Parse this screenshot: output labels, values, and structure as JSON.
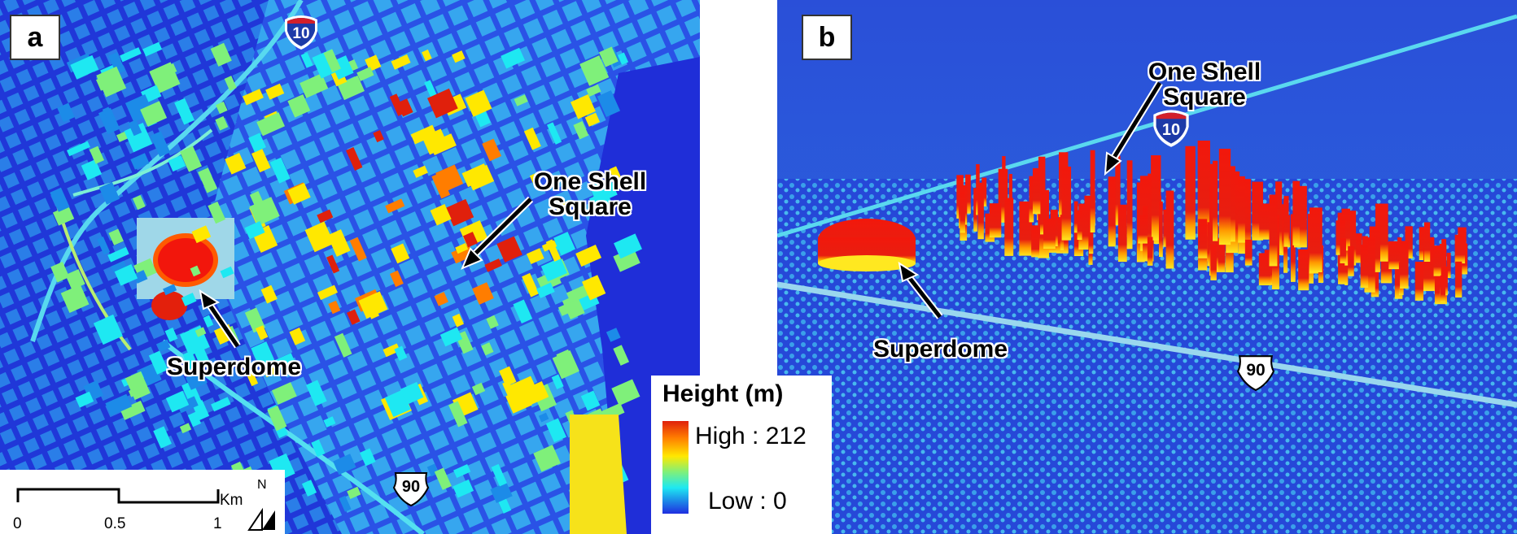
{
  "panel_a": {
    "label": "a",
    "interstate": "10",
    "us_route": "90",
    "annotation_superdome": "Superdome",
    "annotation_shell_line1": "One Shell",
    "annotation_shell_line2": "Square",
    "legend": {
      "title": "Height (m)",
      "high": "High : 212",
      "low": "Low : 0",
      "colors": [
        "#e0200c",
        "#ff7d00",
        "#ffe800",
        "#7ff07a",
        "#1ee8f2",
        "#1c8be8",
        "#1f2ee0"
      ]
    },
    "scale": {
      "ticks": [
        "0",
        "0.5",
        "1"
      ],
      "unit": "Km",
      "north": "N"
    }
  },
  "panel_b": {
    "label": "b",
    "interstate": "10",
    "us_route": "90",
    "annotation_superdome": "Superdome",
    "annotation_shell_line1": "One Shell",
    "annotation_shell_line2": "Square"
  }
}
